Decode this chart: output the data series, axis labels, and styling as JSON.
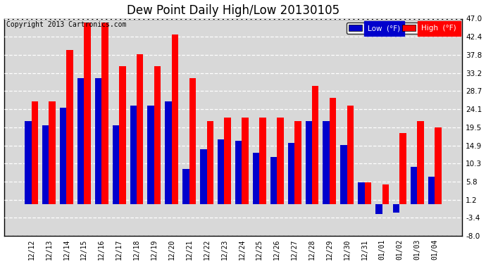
{
  "title": "Dew Point Daily High/Low 20130105",
  "copyright": "Copyright 2013 Cartronics.com",
  "dates": [
    "12/12",
    "12/13",
    "12/14",
    "12/15",
    "12/16",
    "12/17",
    "12/18",
    "12/19",
    "12/20",
    "12/21",
    "12/22",
    "12/23",
    "12/24",
    "12/25",
    "12/26",
    "12/27",
    "12/28",
    "12/29",
    "12/30",
    "12/31",
    "01/01",
    "01/02",
    "01/03",
    "01/04"
  ],
  "high": [
    26.0,
    26.0,
    39.0,
    46.0,
    46.0,
    35.0,
    38.0,
    35.0,
    43.0,
    32.0,
    21.0,
    22.0,
    22.0,
    22.0,
    22.0,
    21.0,
    30.0,
    27.0,
    25.0,
    5.5,
    5.0,
    18.0,
    21.0,
    19.5
  ],
  "low": [
    21.0,
    20.0,
    24.5,
    32.0,
    32.0,
    20.0,
    25.0,
    25.0,
    26.0,
    9.0,
    14.0,
    16.5,
    16.0,
    13.0,
    12.0,
    15.5,
    21.0,
    21.0,
    15.0,
    5.5,
    -2.5,
    -2.0,
    9.5,
    7.0
  ],
  "high_color": "#ff0000",
  "low_color": "#0000cc",
  "bg_color": "#ffffff",
  "plot_bg_color": "#d8d8d8",
  "grid_color": "#ffffff",
  "ylim_min": -8.0,
  "ylim_max": 47.0,
  "yticks": [
    -8.0,
    -3.4,
    1.2,
    5.8,
    10.3,
    14.9,
    19.5,
    24.1,
    28.7,
    33.2,
    37.8,
    42.4,
    47.0
  ],
  "title_fontsize": 12,
  "copyright_fontsize": 7,
  "legend_low_label": "Low  (°F)",
  "legend_high_label": "High  (°F)",
  "bar_width": 0.38
}
